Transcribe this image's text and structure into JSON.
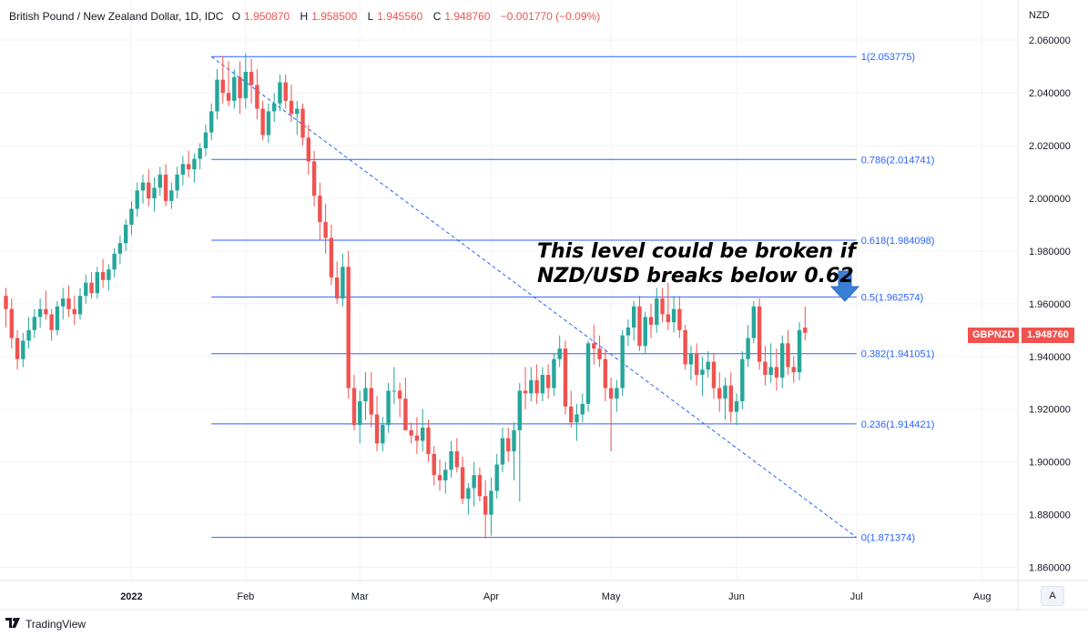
{
  "header": {
    "symbol": "British Pound / New Zealand Dollar, 1D, IDC",
    "open_label": "O",
    "open": "1.950870",
    "high_label": "H",
    "high": "1.958500",
    "low_label": "L",
    "low": "1.945560",
    "close_label": "C",
    "close": "1.948760",
    "change": "−0.001770 (−0.09%)"
  },
  "currency": "NZD",
  "annotation": {
    "line1": "This level could be broken if",
    "line2": "NZD/USD breaks below 0.62"
  },
  "price_tag": {
    "symbol": "GBPNZD",
    "value": "1.948760"
  },
  "footer": {
    "brand": "TradingView",
    "auto_button": "A"
  },
  "colors": {
    "up": "#26a69a",
    "down": "#ef5350",
    "fib": "#2962ff",
    "grid": "#f0f3fa",
    "arrow": "#3b7fd4"
  },
  "icons": {
    "arrow": "arrow-down-icon",
    "logo": "tradingview-logo-icon"
  },
  "chart_data": {
    "type": "candlestick",
    "ylim": [
      1.855,
      2.068
    ],
    "y_ticks": [
      "2.060000",
      "2.040000",
      "2.020000",
      "2.000000",
      "1.980000",
      "1.960000",
      "1.940000",
      "1.920000",
      "1.900000",
      "1.880000",
      "1.860000"
    ],
    "y_tick_values": [
      2.06,
      2.04,
      2.02,
      2.0,
      1.98,
      1.96,
      1.94,
      1.92,
      1.9,
      1.88,
      1.86
    ],
    "x_ticks": [
      {
        "label": "2022",
        "bold": true,
        "index": 22
      },
      {
        "label": "Feb",
        "bold": false,
        "index": 42
      },
      {
        "label": "Mar",
        "bold": false,
        "index": 62
      },
      {
        "label": "Apr",
        "bold": false,
        "index": 85
      },
      {
        "label": "May",
        "bold": false,
        "index": 106
      },
      {
        "label": "Jun",
        "bold": false,
        "index": 128
      },
      {
        "label": "Jul",
        "bold": false,
        "index": 149
      },
      {
        "label": "Aug",
        "bold": false,
        "index": 171
      }
    ],
    "fibonacci": [
      {
        "label": "1(2.053775)",
        "value": 2.053775
      },
      {
        "label": "0.786(2.014741)",
        "value": 2.014741
      },
      {
        "label": "0.618(1.984098)",
        "value": 1.984098
      },
      {
        "label": "0.5(1.962574)",
        "value": 1.962574
      },
      {
        "label": "0.382(1.941051)",
        "value": 1.941051
      },
      {
        "label": "0.236(1.914421)",
        "value": 1.914421
      },
      {
        "label": "0(1.871374)",
        "value": 1.871374
      }
    ],
    "fib_start_index": 36,
    "fib_end_index": 149,
    "trendline": {
      "from_index": 36,
      "from_value": 2.053775,
      "to_index": 149,
      "to_value": 1.871374
    },
    "candles": [
      [
        1.963,
        1.966,
        1.951,
        1.958
      ],
      [
        1.958,
        1.962,
        1.943,
        1.947
      ],
      [
        1.947,
        1.95,
        1.935,
        1.939
      ],
      [
        1.939,
        1.949,
        1.936,
        1.946
      ],
      [
        1.946,
        1.955,
        1.943,
        1.95
      ],
      [
        1.95,
        1.958,
        1.947,
        1.955
      ],
      [
        1.955,
        1.962,
        1.951,
        1.958
      ],
      [
        1.958,
        1.965,
        1.954,
        1.956
      ],
      [
        1.956,
        1.958,
        1.946,
        1.95
      ],
      [
        1.95,
        1.961,
        1.948,
        1.959
      ],
      [
        1.959,
        1.966,
        1.954,
        1.962
      ],
      [
        1.962,
        1.967,
        1.955,
        1.958
      ],
      [
        1.958,
        1.963,
        1.952,
        1.956
      ],
      [
        1.956,
        1.966,
        1.954,
        1.963
      ],
      [
        1.963,
        1.971,
        1.96,
        1.968
      ],
      [
        1.968,
        1.972,
        1.962,
        1.964
      ],
      [
        1.964,
        1.974,
        1.962,
        1.972
      ],
      [
        1.972,
        1.977,
        1.966,
        1.969
      ],
      [
        1.969,
        1.975,
        1.965,
        1.973
      ],
      [
        1.973,
        1.981,
        1.97,
        1.979
      ],
      [
        1.979,
        1.986,
        1.975,
        1.983
      ],
      [
        1.983,
        1.992,
        1.98,
        1.99
      ],
      [
        1.99,
        1.999,
        1.986,
        1.996
      ],
      [
        1.996,
        2.006,
        1.993,
        2.003
      ],
      [
        2.003,
        2.009,
        1.998,
        2.006
      ],
      [
        2.006,
        2.011,
        1.997,
        2.0
      ],
      [
        2.0,
        2.008,
        1.995,
        2.004
      ],
      [
        2.004,
        2.012,
        2.001,
        2.009
      ],
      [
        2.009,
        2.013,
        1.997,
        1.999
      ],
      [
        1.999,
        2.006,
        1.996,
        2.003
      ],
      [
        2.003,
        2.012,
        2.0,
        2.009
      ],
      [
        2.009,
        2.016,
        2.005,
        2.013
      ],
      [
        2.013,
        2.018,
        2.008,
        2.011
      ],
      [
        2.011,
        2.017,
        2.006,
        2.015
      ],
      [
        2.015,
        2.021,
        2.011,
        2.019
      ],
      [
        2.019,
        2.028,
        2.016,
        2.025
      ],
      [
        2.025,
        2.036,
        2.022,
        2.033
      ],
      [
        2.033,
        2.049,
        2.03,
        2.045
      ],
      [
        2.045,
        2.054,
        2.036,
        2.04
      ],
      [
        2.04,
        2.052,
        2.035,
        2.037
      ],
      [
        2.037,
        2.049,
        2.034,
        2.046
      ],
      [
        2.046,
        2.052,
        2.032,
        2.038
      ],
      [
        2.038,
        2.055,
        2.034,
        2.048
      ],
      [
        2.048,
        2.053,
        2.036,
        2.043
      ],
      [
        2.043,
        2.049,
        2.03,
        2.034
      ],
      [
        2.034,
        2.037,
        2.022,
        2.024
      ],
      [
        2.024,
        2.036,
        2.021,
        2.033
      ],
      [
        2.033,
        2.04,
        2.029,
        2.036
      ],
      [
        2.036,
        2.047,
        2.033,
        2.044
      ],
      [
        2.044,
        2.047,
        2.034,
        2.037
      ],
      [
        2.037,
        2.043,
        2.029,
        2.032
      ],
      [
        2.032,
        2.037,
        2.024,
        2.034
      ],
      [
        2.034,
        2.036,
        2.02,
        2.023
      ],
      [
        2.023,
        2.028,
        2.009,
        2.014
      ],
      [
        2.014,
        2.018,
        1.997,
        2.001
      ],
      [
        2.001,
        2.006,
        1.984,
        1.991
      ],
      [
        1.991,
        1.998,
        1.979,
        1.985
      ],
      [
        1.985,
        1.99,
        1.967,
        1.97
      ],
      [
        1.97,
        1.976,
        1.96,
        1.962
      ],
      [
        1.962,
        1.979,
        1.959,
        1.974
      ],
      [
        1.974,
        1.98,
        1.924,
        1.928
      ],
      [
        1.928,
        1.933,
        1.912,
        1.914
      ],
      [
        1.914,
        1.927,
        1.907,
        1.923
      ],
      [
        1.923,
        1.934,
        1.916,
        1.928
      ],
      [
        1.928,
        1.934,
        1.913,
        1.918
      ],
      [
        1.918,
        1.925,
        1.904,
        1.907
      ],
      [
        1.907,
        1.917,
        1.904,
        1.914
      ],
      [
        1.914,
        1.93,
        1.911,
        1.927
      ],
      [
        1.927,
        1.936,
        1.922,
        1.927
      ],
      [
        1.927,
        1.93,
        1.917,
        1.924
      ],
      [
        1.924,
        1.932,
        1.914,
        1.912
      ],
      [
        1.912,
        1.915,
        1.907,
        1.91
      ],
      [
        1.91,
        1.917,
        1.903,
        1.908
      ],
      [
        1.908,
        1.92,
        1.904,
        1.913
      ],
      [
        1.913,
        1.916,
        1.9,
        1.903
      ],
      [
        1.903,
        1.906,
        1.891,
        1.895
      ],
      [
        1.895,
        1.901,
        1.889,
        1.893
      ],
      [
        1.893,
        1.9,
        1.888,
        1.897
      ],
      [
        1.897,
        1.908,
        1.894,
        1.904
      ],
      [
        1.904,
        1.909,
        1.896,
        1.898
      ],
      [
        1.898,
        1.902,
        1.884,
        1.886
      ],
      [
        1.886,
        1.892,
        1.88,
        1.89
      ],
      [
        1.89,
        1.9,
        1.883,
        1.895
      ],
      [
        1.895,
        1.898,
        1.885,
        1.887
      ],
      [
        1.887,
        1.893,
        1.871,
        1.88
      ],
      [
        1.88,
        1.894,
        1.872,
        1.889
      ],
      [
        1.889,
        1.903,
        1.886,
        1.899
      ],
      [
        1.899,
        1.913,
        1.896,
        1.909
      ],
      [
        1.909,
        1.913,
        1.9,
        1.904
      ],
      [
        1.904,
        1.915,
        1.893,
        1.912
      ],
      [
        1.912,
        1.93,
        1.885,
        1.927
      ],
      [
        1.927,
        1.936,
        1.92,
        1.926
      ],
      [
        1.926,
        1.936,
        1.923,
        1.931
      ],
      [
        1.931,
        1.937,
        1.922,
        1.926
      ],
      [
        1.926,
        1.936,
        1.923,
        1.933
      ],
      [
        1.933,
        1.937,
        1.924,
        1.928
      ],
      [
        1.928,
        1.941,
        1.925,
        1.939
      ],
      [
        1.939,
        1.948,
        1.936,
        1.943
      ],
      [
        1.943,
        1.946,
        1.918,
        1.921
      ],
      [
        1.921,
        1.927,
        1.913,
        1.915
      ],
      [
        1.915,
        1.922,
        1.908,
        1.918
      ],
      [
        1.918,
        1.926,
        1.915,
        1.922
      ],
      [
        1.922,
        1.946,
        1.919,
        1.945
      ],
      [
        1.945,
        1.952,
        1.937,
        1.943
      ],
      [
        1.943,
        1.948,
        1.936,
        1.939
      ],
      [
        1.939,
        1.943,
        1.923,
        1.928
      ],
      [
        1.928,
        1.932,
        1.904,
        1.924
      ],
      [
        1.924,
        1.931,
        1.919,
        1.928
      ],
      [
        1.928,
        1.95,
        1.925,
        1.948
      ],
      [
        1.948,
        1.954,
        1.944,
        1.951
      ],
      [
        1.951,
        1.961,
        1.946,
        1.959
      ],
      [
        1.959,
        1.963,
        1.942,
        1.944
      ],
      [
        1.944,
        1.957,
        1.941,
        1.955
      ],
      [
        1.955,
        1.96,
        1.947,
        1.952
      ],
      [
        1.952,
        1.966,
        1.949,
        1.962
      ],
      [
        1.962,
        1.966,
        1.953,
        1.956
      ],
      [
        1.956,
        1.968,
        1.95,
        1.953
      ],
      [
        1.953,
        1.963,
        1.949,
        1.958
      ],
      [
        1.958,
        1.963,
        1.947,
        1.95
      ],
      [
        1.95,
        1.952,
        1.935,
        1.937
      ],
      [
        1.937,
        1.944,
        1.931,
        1.941
      ],
      [
        1.941,
        1.945,
        1.929,
        1.933
      ],
      [
        1.933,
        1.94,
        1.925,
        1.935
      ],
      [
        1.935,
        1.942,
        1.932,
        1.938
      ],
      [
        1.938,
        1.941,
        1.924,
        1.928
      ],
      [
        1.928,
        1.934,
        1.919,
        1.924
      ],
      [
        1.924,
        1.932,
        1.916,
        1.929
      ],
      [
        1.929,
        1.934,
        1.915,
        1.919
      ],
      [
        1.919,
        1.926,
        1.914,
        1.923
      ],
      [
        1.923,
        1.942,
        1.92,
        1.939
      ],
      [
        1.939,
        1.952,
        1.936,
        1.947
      ],
      [
        1.947,
        1.961,
        1.945,
        1.959
      ],
      [
        1.959,
        1.962,
        1.935,
        1.938
      ],
      [
        1.938,
        1.944,
        1.929,
        1.933
      ],
      [
        1.933,
        1.945,
        1.93,
        1.936
      ],
      [
        1.936,
        1.943,
        1.927,
        1.932
      ],
      [
        1.932,
        1.948,
        1.928,
        1.945
      ],
      [
        1.945,
        1.95,
        1.933,
        1.936
      ],
      [
        1.936,
        1.94,
        1.93,
        1.934
      ],
      [
        1.934,
        1.953,
        1.931,
        1.95
      ],
      [
        1.951,
        1.959,
        1.946,
        1.949
      ]
    ]
  }
}
